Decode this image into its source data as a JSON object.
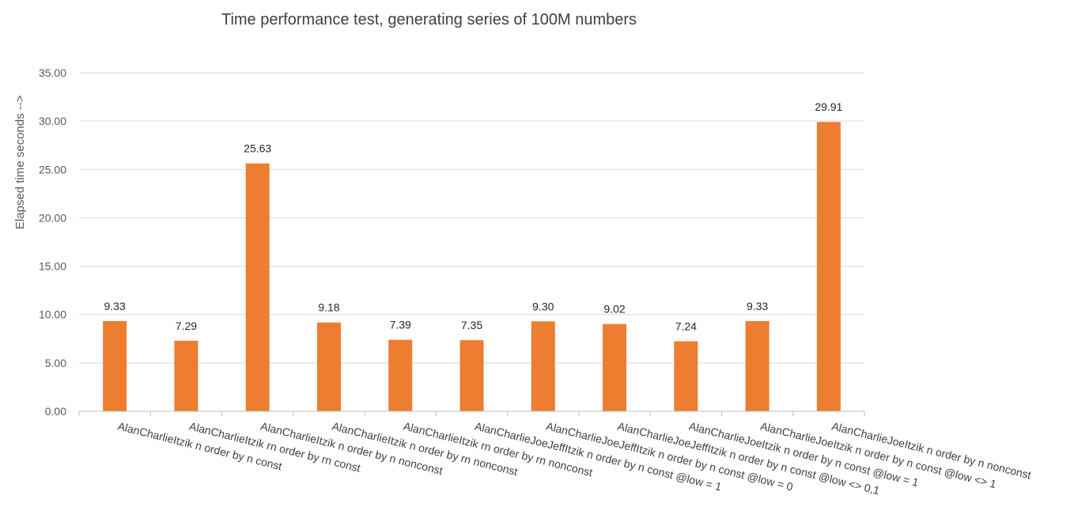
{
  "chart_data": {
    "type": "bar",
    "title": "Time performance test, generating series of 100M numbers",
    "xlabel": "",
    "ylabel": "Elapsed time seconds -->",
    "ylim": [
      0,
      35
    ],
    "y_ticks": [
      "0.00",
      "5.00",
      "10.00",
      "15.00",
      "20.00",
      "25.00",
      "30.00",
      "35.00"
    ],
    "grid": true,
    "legend": "none",
    "bar_color": "#ED7D31",
    "categories": [
      "AlanCharlieItzik n order by n const",
      "AlanCharlieItzik rn order by rn const",
      "AlanCharlieItzik n order by n nonconst",
      "AlanCharlieItzik n order by rn nonconst",
      "AlanCharlieItzik rn order by rn nonconst",
      "AlanCharlieJoeJeffItzik n order by n const @low = 1",
      "AlanCharlieJoeJeffItzik n order by n const @low = 0",
      "AlanCharlieJoeJeffItzik n order by n const @low <> 0,1",
      "AlanCharlieJoeItzik n order by n const @low = 1",
      "AlanCharlieJoeItzik n order by n const @low <> 1",
      "AlanCharlieJoeItzik n order by n nonconst"
    ],
    "values": [
      9.33,
      7.29,
      25.63,
      9.18,
      7.39,
      7.35,
      9.3,
      9.02,
      7.24,
      9.33,
      29.91
    ],
    "data_labels": [
      "9.33",
      "7.29",
      "25.63",
      "9.18",
      "7.39",
      "7.35",
      "9.30",
      "9.02",
      "7.24",
      "9.33",
      "29.91"
    ]
  }
}
